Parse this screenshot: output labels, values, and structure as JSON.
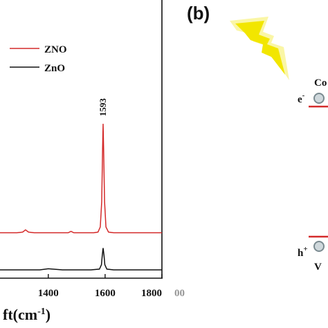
{
  "chart_data": {
    "type": "line",
    "xlabel_visible": "ft(cm",
    "xlabel_sup": "-1",
    "xlabel_close": ")",
    "x_ticks": [
      1400,
      1600,
      1800
    ],
    "x_tick_extra": "00",
    "xlim": [
      1230,
      1800
    ],
    "legend_placement": "top-left",
    "series": [
      {
        "name": "ZNO",
        "color": "#d42a2a",
        "x": [
          1230,
          1260,
          1290,
          1310,
          1320,
          1330,
          1350,
          1380,
          1410,
          1440,
          1470,
          1480,
          1490,
          1510,
          1540,
          1560,
          1575,
          1583,
          1588,
          1591,
          1593,
          1595,
          1598,
          1603,
          1612,
          1630,
          1660,
          1700,
          1740,
          1780,
          1800
        ],
        "y": [
          0.12,
          0.12,
          0.12,
          0.13,
          0.16,
          0.13,
          0.12,
          0.12,
          0.12,
          0.12,
          0.12,
          0.14,
          0.12,
          0.12,
          0.12,
          0.12,
          0.13,
          0.2,
          0.55,
          1.25,
          1.62,
          1.25,
          0.55,
          0.2,
          0.13,
          0.12,
          0.12,
          0.12,
          0.12,
          0.12,
          0.12
        ]
      },
      {
        "name": "ZnO",
        "color": "#111111",
        "x": [
          1230,
          1300,
          1370,
          1400,
          1450,
          1500,
          1550,
          1580,
          1587,
          1590,
          1593,
          1596,
          1599,
          1606,
          1630,
          1700,
          1760,
          1800
        ],
        "y": [
          0.0,
          0.0,
          0.0,
          0.015,
          0.0,
          0.0,
          0.0,
          0.01,
          0.07,
          0.2,
          0.3,
          0.2,
          0.07,
          0.01,
          0.0,
          0.0,
          0.0,
          0.0
        ]
      }
    ],
    "annotations": [
      {
        "text": "1593",
        "x": 1593
      }
    ]
  },
  "panel": {
    "label": "(b)",
    "cb_electron": "e",
    "cb_electron_sup": "-",
    "cb_label_partial": "Co",
    "vb_hole": "h",
    "vb_hole_sup": "+",
    "vb_label_partial": "V",
    "lightning_color": "#f2e600",
    "band_color": "#d42a2a"
  }
}
